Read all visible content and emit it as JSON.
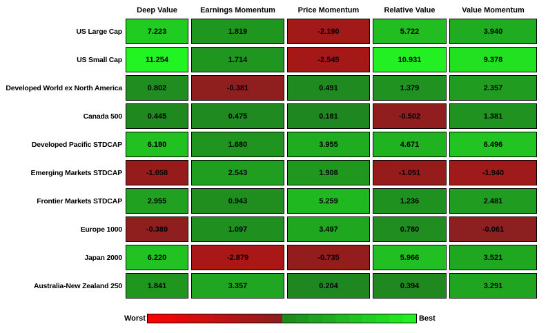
{
  "chart_data": {
    "type": "heatmap",
    "title": "",
    "xlabel": "",
    "ylabel": "",
    "columns": [
      "Deep Value",
      "Earnings Momentum",
      "Price Momentum",
      "Relative Value",
      "Value Momentum"
    ],
    "rows": [
      {
        "label": "US Large Cap",
        "values": [
          7.223,
          1.819,
          -2.19,
          5.722,
          3.94
        ]
      },
      {
        "label": "US Small Cap",
        "values": [
          11.254,
          1.714,
          -2.545,
          10.931,
          9.378
        ]
      },
      {
        "label": "Developed World ex North America",
        "values": [
          0.802,
          -0.381,
          0.491,
          1.379,
          2.357
        ]
      },
      {
        "label": "Canada 500",
        "values": [
          0.445,
          0.475,
          0.181,
          -0.502,
          1.381
        ]
      },
      {
        "label": "Developed Pacific STDCAP",
        "values": [
          6.18,
          1.68,
          3.955,
          4.671,
          6.496
        ]
      },
      {
        "label": "Emerging Markets STDCAP",
        "values": [
          -1.058,
          2.543,
          1.908,
          -1.051,
          -1.94
        ]
      },
      {
        "label": "Frontier Markets STDCAP",
        "values": [
          2.955,
          0.943,
          5.259,
          1.236,
          2.481
        ]
      },
      {
        "label": "Europe 1000",
        "values": [
          -0.389,
          1.097,
          3.497,
          0.78,
          -0.061
        ]
      },
      {
        "label": "Japan 2000",
        "values": [
          6.22,
          -2.879,
          -0.735,
          5.966,
          3.521
        ]
      },
      {
        "label": "Australia-New Zealand 250",
        "values": [
          1.841,
          3.357,
          0.204,
          0.394,
          3.291
        ]
      }
    ],
    "value_format_decimals": 3,
    "legend": {
      "worst_label": "Worst",
      "best_label": "Best",
      "position": "bottom",
      "steps": 20
    },
    "colormap": {
      "description": "Diverging red-green: negative values red, positive values green; intensity scales with |value| / scale_abs_max",
      "scale_abs_max": 11.254,
      "green_low": "#1F851F",
      "green_high": "#22F322",
      "red_low": "#8B1F1F",
      "red_high": "#FF0000"
    }
  }
}
